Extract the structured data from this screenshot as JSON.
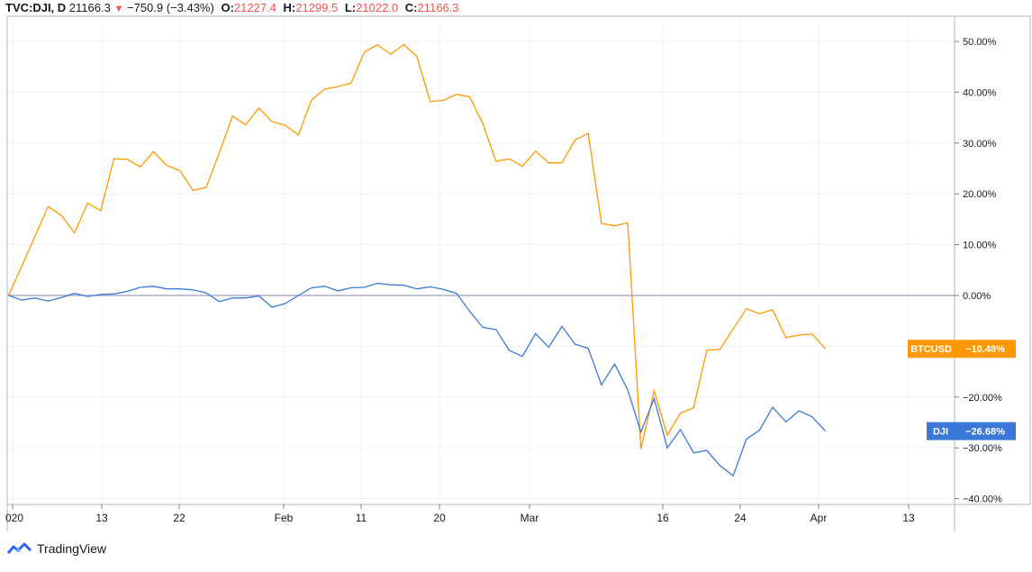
{
  "header": {
    "symbol": "TVC:DJI, D",
    "last": "21166.3",
    "change": "−750.9 (−3.43%)",
    "open_label": "O:",
    "open": "21227.4",
    "high_label": "H:",
    "high": "21299.5",
    "low_label": "L:",
    "low": "21022.0",
    "close_label": "C:",
    "close": "21166.3"
  },
  "footer": {
    "brand": "TradingView"
  },
  "colors": {
    "btc": "#ff9800",
    "dji": "#3b78d8",
    "zero_line": "#9aa3c0",
    "grid": "#f0f3fa",
    "red": "#ef5350"
  },
  "chart_data": {
    "type": "line",
    "x_tick_labels": [
      "020",
      "13",
      "22",
      "Feb",
      "11",
      "20",
      "Mar",
      "16",
      "24",
      "Apr",
      "13"
    ],
    "y_tick_labels": [
      "50.00%",
      "40.00%",
      "30.00%",
      "20.00%",
      "10.00%",
      "0.00%",
      "−10.00%",
      "−20.00%",
      "−30.00%",
      "−40.00%"
    ],
    "y_unit": "%",
    "ylim": [
      -40.5,
      53
    ],
    "grid": true,
    "series": [
      {
        "name": "BTCUSD",
        "last_label": "−10.48%",
        "values": [
          0,
          5.7,
          11.6,
          17.5,
          15.8,
          12.3,
          18.2,
          16.7,
          26.9,
          26.8,
          25.3,
          28.3,
          25.6,
          24.6,
          20.7,
          21.3,
          28.1,
          35.3,
          33.6,
          36.9,
          34.2,
          33.5,
          31.6,
          38.5,
          40.6,
          41.1,
          41.8,
          47.9,
          49.3,
          47.5,
          49.4,
          47.0,
          38.2,
          38.4,
          39.6,
          39.1,
          33.8,
          26.4,
          26.9,
          25.4,
          28.4,
          26.1,
          26.1,
          30.6,
          31.9,
          14.2,
          13.7,
          14.3,
          -30.2,
          -18.8,
          -27.5,
          -23.2,
          -22.1,
          -10.8,
          -10.6,
          -6.6,
          -2.6,
          -3.6,
          -2.8,
          -8.3,
          -7.8,
          -7.6,
          -10.5
        ]
      },
      {
        "name": "DJI",
        "last_label": "−26.68%",
        "values": [
          0,
          -0.9,
          -0.5,
          -1.1,
          -0.4,
          0.4,
          -0.2,
          0.2,
          0.3,
          0.8,
          1.6,
          1.8,
          1.3,
          1.3,
          1.1,
          0.5,
          -1.2,
          -0.5,
          -0.5,
          -0.1,
          -2.3,
          -1.6,
          0,
          1.5,
          1.8,
          0.9,
          1.5,
          1.6,
          2.4,
          2.1,
          2.0,
          1.3,
          1.7,
          1.2,
          0.4,
          -3.1,
          -6.3,
          -6.7,
          -10.8,
          -12.0,
          -7.5,
          -10.2,
          -6.1,
          -9.6,
          -10.4,
          -17.6,
          -13.5,
          -18.6,
          -26.9,
          -20.3,
          -30.0,
          -26.4,
          -31.0,
          -30.5,
          -33.5,
          -35.5,
          -28.3,
          -26.5,
          -22.0,
          -24.9,
          -22.7,
          -23.9,
          -26.7
        ]
      }
    ]
  }
}
